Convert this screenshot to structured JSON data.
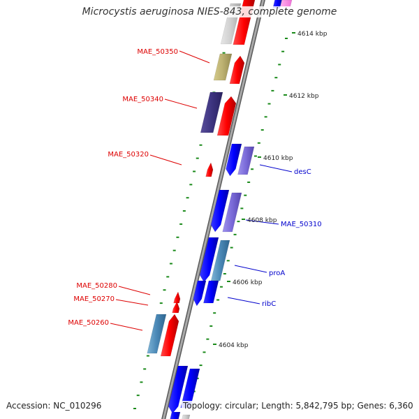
{
  "title": "Microcystis aeruginosa NIES-843, complete genome",
  "footer": {
    "accession": "Accession: NC_010296",
    "topology": "Topology: circular; Length: 5,842,795 bp; Genes: 6,360"
  },
  "colors": {
    "backbone": "#8c8c8c",
    "tick": "#1a8a1a",
    "reverse_label": "#dd0000",
    "forward_label": "#0000cc"
  },
  "scale_labels": [
    "4614 kbp",
    "4612 kbp",
    "4610 kbp",
    "4608 kbp",
    "4606 kbp",
    "4604 kbp"
  ],
  "gene_labels_reverse": [
    "MAE_50350",
    "MAE_50340",
    "MAE_50320",
    "MAE_50280",
    "MAE_50270",
    "MAE_50260"
  ],
  "gene_labels_forward": [
    "desC",
    "MAE_50310",
    "proA",
    "ribC"
  ]
}
